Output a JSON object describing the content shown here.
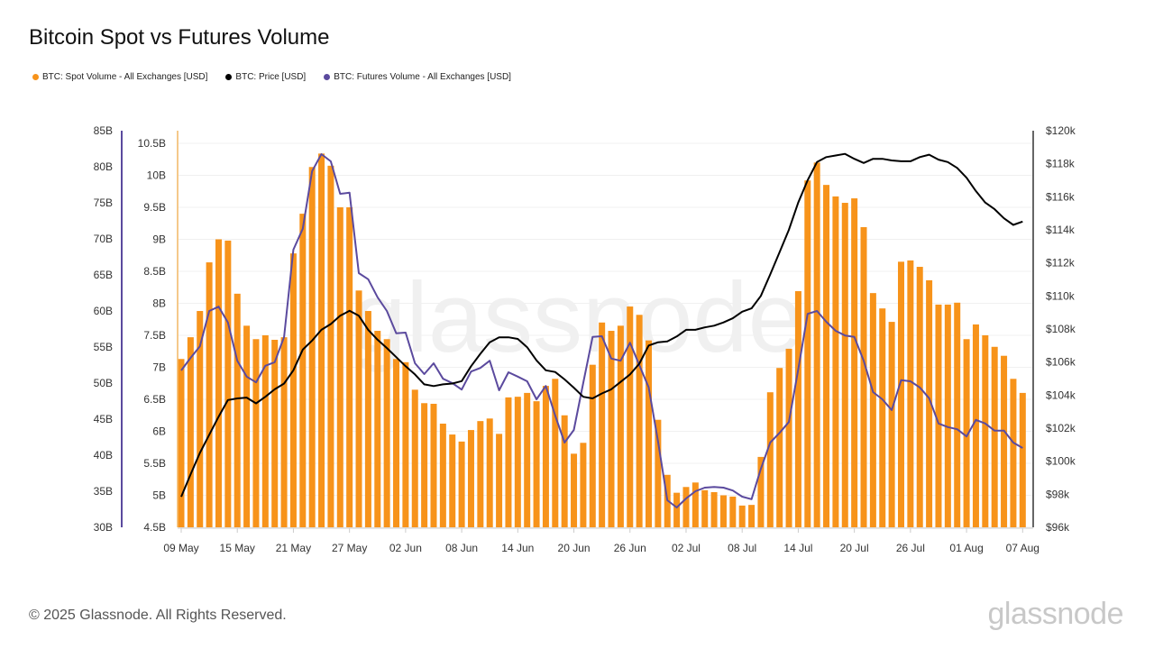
{
  "title": "Bitcoin Spot vs Futures Volume",
  "footer": "© 2025 Glassnode. All Rights Reserved.",
  "logo": "glassnode",
  "watermark": "glassnode",
  "colors": {
    "spot": "#f7931a",
    "price": "#000000",
    "futures": "#5b4a9e"
  },
  "chart_data": {
    "type": "bar+line",
    "legend_placement": "top-left",
    "grid": true,
    "x": [
      "2025-05-09",
      "2025-05-10",
      "2025-05-11",
      "2025-05-12",
      "2025-05-13",
      "2025-05-14",
      "2025-05-15",
      "2025-05-16",
      "2025-05-17",
      "2025-05-18",
      "2025-05-19",
      "2025-05-20",
      "2025-05-21",
      "2025-05-22",
      "2025-05-23",
      "2025-05-24",
      "2025-05-25",
      "2025-05-26",
      "2025-05-27",
      "2025-05-28",
      "2025-05-29",
      "2025-05-30",
      "2025-05-31",
      "2025-06-01",
      "2025-06-02",
      "2025-06-03",
      "2025-06-04",
      "2025-06-05",
      "2025-06-06",
      "2025-06-07",
      "2025-06-08",
      "2025-06-09",
      "2025-06-10",
      "2025-06-11",
      "2025-06-12",
      "2025-06-13",
      "2025-06-14",
      "2025-06-15",
      "2025-06-16",
      "2025-06-17",
      "2025-06-18",
      "2025-06-19",
      "2025-06-20",
      "2025-06-21",
      "2025-06-22",
      "2025-06-23",
      "2025-06-24",
      "2025-06-25",
      "2025-06-26",
      "2025-06-27",
      "2025-06-28",
      "2025-06-29",
      "2025-06-30",
      "2025-07-01",
      "2025-07-02",
      "2025-07-03",
      "2025-07-04",
      "2025-07-05",
      "2025-07-06",
      "2025-07-07",
      "2025-07-08",
      "2025-07-09",
      "2025-07-10",
      "2025-07-11",
      "2025-07-12",
      "2025-07-13",
      "2025-07-14",
      "2025-07-15",
      "2025-07-16",
      "2025-07-17",
      "2025-07-18",
      "2025-07-19",
      "2025-07-20",
      "2025-07-21",
      "2025-07-22",
      "2025-07-23",
      "2025-07-24",
      "2025-07-25",
      "2025-07-26",
      "2025-07-27",
      "2025-07-28",
      "2025-07-29",
      "2025-07-30",
      "2025-07-31",
      "2025-08-01",
      "2025-08-02",
      "2025-08-03",
      "2025-08-04",
      "2025-08-05",
      "2025-08-06",
      "2025-08-07"
    ],
    "x_ticks": [
      "09 May",
      "15 May",
      "21 May",
      "27 May",
      "02 Jun",
      "08 Jun",
      "14 Jun",
      "20 Jun",
      "26 Jun",
      "02 Jul",
      "08 Jul",
      "14 Jul",
      "20 Jul",
      "26 Jul",
      "01 Aug",
      "07 Aug"
    ],
    "axes": {
      "futures": {
        "ticks": [
          "30B",
          "35B",
          "40B",
          "45B",
          "50B",
          "55B",
          "60B",
          "65B",
          "70B",
          "75B",
          "80B",
          "85B"
        ],
        "range": [
          30,
          85
        ],
        "unit": "B USD"
      },
      "spot": {
        "ticks": [
          "4.5B",
          "5B",
          "5.5B",
          "6B",
          "6.5B",
          "7B",
          "7.5B",
          "8B",
          "8.5B",
          "9B",
          "9.5B",
          "10B",
          "10.5B"
        ],
        "range": [
          4.5,
          10.5
        ],
        "unit": "B USD"
      },
      "price": {
        "ticks": [
          "$96k",
          "$98k",
          "$100k",
          "$102k",
          "$104k",
          "$106k",
          "$108k",
          "$110k",
          "$112k",
          "$114k",
          "$116k",
          "$118k",
          "$120k"
        ],
        "range": [
          96,
          120
        ],
        "unit": "k USD"
      }
    },
    "series": [
      {
        "name": "BTC: Spot Volume - All Exchanges [USD]",
        "type": "bar",
        "axis": "spot",
        "values": [
          7.13,
          7.47,
          7.88,
          8.64,
          9.0,
          8.98,
          8.15,
          7.65,
          7.44,
          7.5,
          7.43,
          7.47,
          8.78,
          9.4,
          10.13,
          10.34,
          10.15,
          9.5,
          9.5,
          8.2,
          7.88,
          7.57,
          7.44,
          7.13,
          7.08,
          6.65,
          6.44,
          6.43,
          6.12,
          5.95,
          5.84,
          6.02,
          6.16,
          6.2,
          5.96,
          6.53,
          6.54,
          6.6,
          6.47,
          6.71,
          6.82,
          6.25,
          5.65,
          5.82,
          7.04,
          7.7,
          7.57,
          7.65,
          7.95,
          7.82,
          7.42,
          6.18,
          5.32,
          5.04,
          5.13,
          5.2,
          5.08,
          5.05,
          5.0,
          4.98,
          4.84,
          4.85,
          5.6,
          6.61,
          6.99,
          7.29,
          8.19,
          9.92,
          10.2,
          9.85,
          9.67,
          9.57,
          9.64,
          9.19,
          8.16,
          7.92,
          7.71,
          8.65,
          8.67,
          8.57,
          8.36,
          7.98,
          7.98,
          8.01,
          7.44,
          7.67,
          7.5,
          7.32,
          7.18,
          6.82,
          6.6
        ]
      },
      {
        "name": "BTC: Price [USD]",
        "type": "line",
        "axis": "price",
        "values": [
          97.85,
          99.2,
          100.5,
          101.6,
          102.7,
          103.7,
          103.8,
          103.85,
          103.5,
          103.9,
          104.35,
          104.7,
          105.5,
          106.75,
          107.3,
          107.95,
          108.3,
          108.8,
          109.1,
          108.8,
          107.95,
          107.35,
          106.85,
          106.3,
          105.75,
          105.25,
          104.65,
          104.55,
          104.65,
          104.7,
          104.85,
          105.75,
          106.5,
          107.2,
          107.5,
          107.5,
          107.4,
          106.9,
          106.1,
          105.5,
          105.4,
          104.95,
          104.45,
          103.9,
          103.8,
          104.1,
          104.35,
          104.8,
          105.25,
          105.9,
          107,
          107.2,
          107.25,
          107.55,
          107.95,
          107.95,
          108.1,
          108.2,
          108.4,
          108.65,
          109.05,
          109.25,
          110,
          111.3,
          112.65,
          114,
          115.65,
          117,
          118.1,
          118.4,
          118.5,
          118.6,
          118.3,
          118.05,
          118.3,
          118.3,
          118.2,
          118.15,
          118.15,
          118.4,
          118.55,
          118.25,
          118.1,
          117.75,
          117.15,
          116.35,
          115.65,
          115.25,
          114.7,
          114.3,
          114.5
        ]
      },
      {
        "name": "BTC: Futures Volume - All Exchanges [USD]",
        "type": "line",
        "axis": "futures",
        "values": [
          51.75,
          53.5,
          55.1,
          60,
          60.6,
          58.4,
          53.1,
          50.9,
          50.1,
          52.4,
          52.9,
          56.4,
          68.5,
          71.4,
          79.4,
          81.75,
          80.75,
          76.25,
          76.4,
          65.25,
          64.4,
          61.9,
          60,
          56.9,
          57,
          52.75,
          51.25,
          52.75,
          50.6,
          50,
          49.1,
          51.6,
          52.1,
          53.1,
          49,
          51.5,
          50.9,
          50.25,
          47.75,
          49.6,
          45.5,
          41.75,
          43.5,
          50,
          56.4,
          56.5,
          53.4,
          53.1,
          55.6,
          52.5,
          49.4,
          41.9,
          33.75,
          32.75,
          34,
          35,
          35.5,
          35.6,
          35.5,
          35.1,
          34.25,
          33.9,
          38.1,
          41.75,
          43.1,
          44.6,
          51.9,
          59.6,
          60,
          58.5,
          57.25,
          56.6,
          56.4,
          53.1,
          48.75,
          47.75,
          46.25,
          50.4,
          50.25,
          49.4,
          47.9,
          44.4,
          43.9,
          43.6,
          42.6,
          44.9,
          44.4,
          43.4,
          43.4,
          41.75,
          41
        ]
      }
    ]
  }
}
